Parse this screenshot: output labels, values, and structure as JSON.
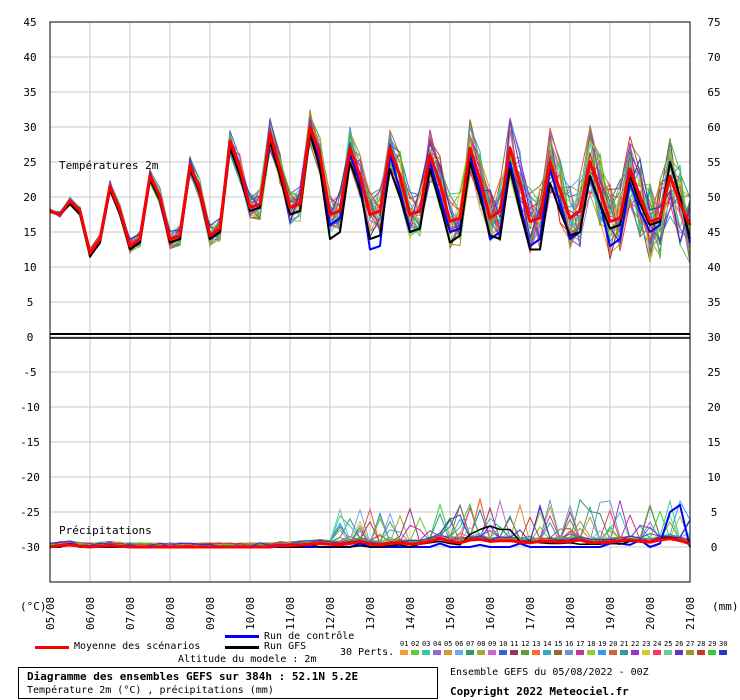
{
  "chart_data": {
    "type": "line",
    "title": "Diagramme des ensembles GEFS sur 384h : 52.1N 5.2E",
    "subtitle": "Température 2m (°C) , précipitations (mm)",
    "y_left_ticks": [
      "45",
      "40",
      "35",
      "30",
      "25",
      "20",
      "15",
      "10",
      "5",
      "0",
      "-5",
      "-10",
      "-15",
      "-20",
      "-25",
      "-30"
    ],
    "y_right_ticks": [
      "75",
      "70",
      "65",
      "60",
      "55",
      "50",
      "45",
      "40",
      "35",
      "30",
      "25",
      "20",
      "15",
      "10",
      "5",
      "0"
    ],
    "left_unit": "(°C)",
    "right_unit": "(mm)",
    "x_dates": [
      "05/08",
      "06/08",
      "07/08",
      "08/08",
      "09/08",
      "10/08",
      "11/08",
      "12/08",
      "13/08",
      "14/08",
      "15/08",
      "16/08",
      "17/08",
      "18/08",
      "19/08",
      "20/08",
      "21/08"
    ],
    "temp_label": "Températures 2m",
    "precip_label": "Précipitations",
    "temp_ylim": [
      -30,
      45
    ],
    "precip_ylim": [
      0,
      75
    ],
    "mean_temperature": [
      18,
      17.5,
      19.5,
      18,
      12,
      14,
      21.5,
      18,
      13,
      14,
      23,
      20,
      14,
      14.5,
      24.5,
      21,
      14.5,
      15.5,
      28,
      24,
      18.5,
      19,
      29,
      24,
      18.5,
      19,
      30,
      26,
      17.5,
      18,
      27,
      23,
      17.5,
      18,
      27,
      23,
      17.5,
      18,
      26,
      22,
      16.5,
      17,
      27,
      22.5,
      17,
      18,
      27,
      22,
      16.5,
      17,
      25,
      21,
      17,
      18,
      25,
      21,
      16.5,
      17,
      24,
      20,
      16.5,
      17,
      23,
      19,
      16
    ],
    "control_temperature": [
      18,
      17.5,
      19,
      17.5,
      12,
      13.5,
      21,
      17.5,
      13,
      13.5,
      22.5,
      19.5,
      13.5,
      14,
      24,
      20.5,
      14,
      15,
      27.5,
      23.5,
      18,
      18.5,
      28,
      23,
      17.5,
      18,
      29,
      25,
      16,
      17,
      26,
      22,
      12.5,
      13,
      26,
      21,
      15,
      15.5,
      25,
      20,
      15,
      15.5,
      26,
      21,
      14,
      15,
      25,
      19,
      13,
      14,
      24,
      19,
      14,
      15,
      23,
      19,
      13,
      14,
      22,
      18,
      15,
      16,
      25,
      20,
      13.5
    ],
    "gfs_temperature": [
      18,
      17.5,
      19,
      17.5,
      11.5,
      13.5,
      21,
      17.5,
      12.5,
      13.5,
      22.5,
      19.5,
      13.5,
      14,
      24,
      20.5,
      14,
      15,
      27,
      23,
      18,
      18.5,
      28,
      23,
      17.5,
      18,
      29,
      24,
      14,
      15,
      25,
      21,
      14,
      14.5,
      24,
      20,
      15,
      15.5,
      24,
      19,
      13.5,
      14.5,
      25,
      20,
      14.5,
      14,
      24,
      18,
      12.5,
      12.5,
      22,
      18,
      14.5,
      15,
      23,
      19,
      15.5,
      16,
      23,
      19,
      16,
      16.5,
      25,
      20,
      14
    ],
    "mean_precip": [
      0,
      0.2,
      0.3,
      0.1,
      0,
      0.1,
      0.2,
      0.1,
      0,
      0,
      0,
      0,
      0,
      0,
      0,
      0,
      0,
      0,
      0,
      0,
      0,
      0,
      0,
      0.2,
      0.2,
      0.3,
      0.4,
      0.5,
      0.4,
      0.3,
      0.5,
      0.8,
      0.4,
      0.3,
      0.5,
      0.6,
      0.4,
      0.5,
      0.8,
      1.2,
      0.8,
      0.6,
      1.0,
      1.1,
      0.8,
      0.9,
      0.9,
      0.7,
      0.6,
      0.8,
      0.8,
      0.7,
      0.8,
      1.0,
      0.6,
      0.6,
      0.7,
      0.9,
      1.0,
      0.8,
      0.7,
      1.0,
      1.2,
      0.9,
      0.5
    ],
    "control_precip": [
      0,
      0,
      0.5,
      0,
      0,
      0,
      0,
      0,
      0,
      0,
      0,
      0,
      0,
      0,
      0,
      0,
      0,
      0,
      0,
      0,
      0,
      0,
      0,
      0,
      0,
      0,
      0,
      0,
      0,
      0,
      0,
      0.5,
      0,
      0,
      0,
      0,
      0,
      0,
      0,
      0.5,
      0,
      0,
      0,
      0.3,
      0,
      0,
      0,
      0.5,
      0,
      0,
      0,
      0,
      0,
      0,
      0,
      0,
      0.5,
      0.5,
      0.3,
      1.0,
      0,
      0.5,
      5.0,
      6.0,
      0
    ],
    "gfs_precip": [
      0,
      0,
      0.3,
      0,
      0,
      0,
      0,
      0,
      0,
      0,
      0,
      0,
      0,
      0,
      0,
      0,
      0,
      0,
      0,
      0,
      0,
      0,
      0,
      0,
      0,
      0,
      0.3,
      0,
      0,
      0,
      0,
      0.2,
      0,
      0,
      0.2,
      0.3,
      0,
      0.4,
      0.6,
      0.8,
      0.5,
      0.3,
      1.8,
      2.5,
      3.0,
      2.5,
      2.5,
      0.8,
      0.8,
      0.6,
      0.5,
      0.5,
      0.6,
      0.4,
      0.4,
      0.4,
      0.6,
      0.4,
      0.8,
      0.8,
      0.6,
      1.2,
      1.4,
      1.0,
      0.3
    ],
    "pert_labels": [
      "01",
      "02",
      "03",
      "04",
      "05",
      "06",
      "07",
      "08",
      "09",
      "10",
      "11",
      "12",
      "13",
      "14",
      "15",
      "16",
      "17",
      "18",
      "19",
      "20",
      "21",
      "22",
      "23",
      "24",
      "25",
      "26",
      "27",
      "28",
      "29",
      "30"
    ],
    "pert_colors": [
      "#ff9933",
      "#66cc33",
      "#33cc99",
      "#9966cc",
      "#cc9933",
      "#66aaff",
      "#339966",
      "#aaaa33",
      "#cc66cc",
      "#3366cc",
      "#993366",
      "#669933",
      "#ff6633",
      "#33aacc",
      "#996633",
      "#6699cc",
      "#cc3399",
      "#99cc33",
      "#3399ff",
      "#cc6633",
      "#339999",
      "#9933cc",
      "#cccc33",
      "#ff3366",
      "#66cc99",
      "#6633cc",
      "#999933",
      "#cc3333",
      "#33cc33",
      "#3333cc"
    ],
    "series": [
      {
        "name": "Moyenne des scénarios",
        "color": "#ff0000"
      },
      {
        "name": "Run de contrôle",
        "color": "#0000ff"
      },
      {
        "name": "Run GFS",
        "color": "#000000"
      }
    ],
    "legend_placement": "bottom",
    "grid": true
  },
  "legend": {
    "mean": "Moyenne des scénarios",
    "control": "Run de contrôle",
    "gfs": "Run GFS",
    "perts": "30 Perts."
  },
  "altitude": "Altitude du modele : 2m",
  "info": {
    "title": "Diagramme des ensembles GEFS sur 384h : 52.1N 5.2E",
    "subtitle": "Température 2m (°C) , précipitations (mm)"
  },
  "ensemble_run": "Ensemble GEFS du 05/08/2022 - 00Z",
  "copyright": "Copyright 2022 Meteociel.fr"
}
